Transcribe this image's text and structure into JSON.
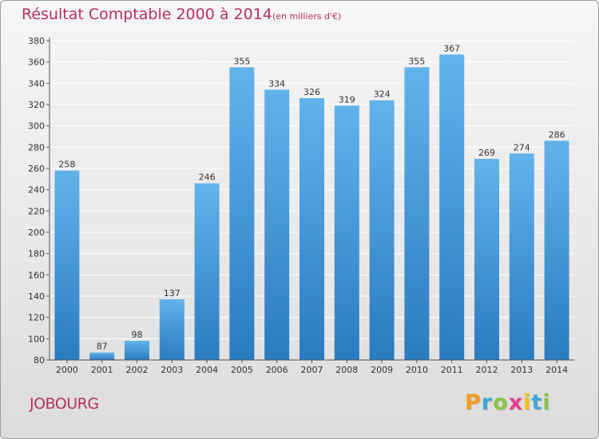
{
  "header": {
    "title": "Résultat Comptable 2000 à 2014",
    "subtitle": "(en milliers d'€)"
  },
  "footer": {
    "commune": "JOBOURG",
    "logo_letters": [
      "P",
      "r",
      "o",
      "x",
      "i",
      "t",
      "i"
    ],
    "logo_colors": [
      "#f29d1f",
      "#3fa6d8",
      "#8bc34a",
      "#e73e8c",
      "#f5c313",
      "#3fa6d8",
      "#8bc34a"
    ]
  },
  "colors": {
    "bar_light": "#62b3ec",
    "bar_dark": "#2a7bc0",
    "title": "#b6325a",
    "grid": "#ffffff",
    "axis": "#555555"
  },
  "chart_data": {
    "type": "bar",
    "title": "Résultat Comptable 2000 à 2014",
    "subtitle": "(en milliers d'€)",
    "categories": [
      "2000",
      "2001",
      "2002",
      "2003",
      "2004",
      "2005",
      "2006",
      "2007",
      "2008",
      "2009",
      "2010",
      "2011",
      "2012",
      "2013",
      "2014"
    ],
    "values": [
      258,
      87,
      98,
      137,
      246,
      355,
      334,
      326,
      319,
      324,
      355,
      367,
      269,
      274,
      286
    ],
    "ylim": [
      80,
      380
    ],
    "yticks": [
      80,
      100,
      120,
      140,
      160,
      180,
      200,
      220,
      240,
      260,
      280,
      300,
      320,
      340,
      360,
      380
    ],
    "xlabel": "",
    "ylabel": "",
    "grid": true
  }
}
